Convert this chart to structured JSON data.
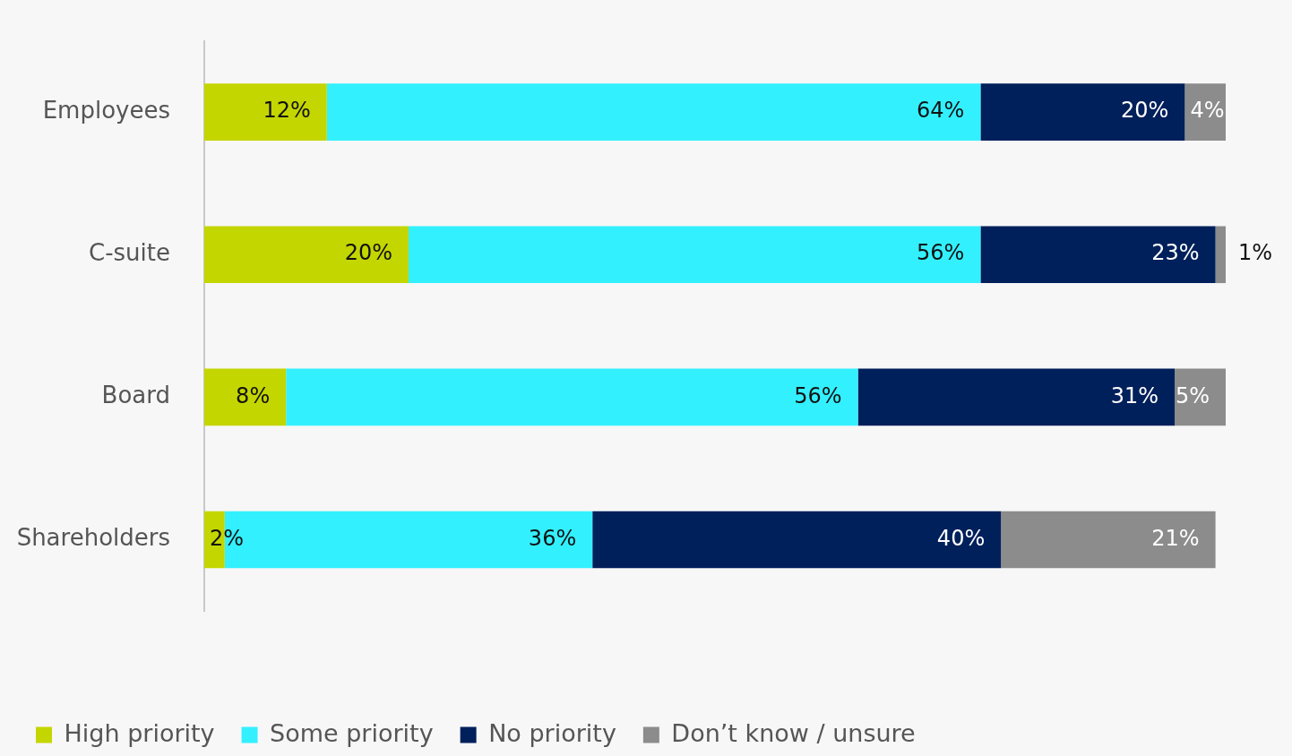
{
  "chart_data": {
    "type": "bar",
    "orientation": "horizontal",
    "stacked": true,
    "categories": [
      "Employees",
      "C-suite",
      "Board",
      "Shareholders"
    ],
    "series": [
      {
        "name": "High priority",
        "color": "#c4d600",
        "values": [
          12,
          20,
          8,
          2
        ],
        "value_labels": [
          "12%",
          "20%",
          "8%",
          "2%"
        ]
      },
      {
        "name": "Some priority",
        "color": "#33f0ff",
        "values": [
          64,
          56,
          56,
          36
        ],
        "value_labels": [
          "64%",
          "56%",
          "56%",
          "36%"
        ]
      },
      {
        "name": "No priority",
        "color": "#00205b",
        "values": [
          20,
          23,
          31,
          40
        ],
        "value_labels": [
          "20%",
          "23%",
          "31%",
          "40%"
        ]
      },
      {
        "name": "Don’t know / unsure",
        "color": "#8c8c8c",
        "values": [
          4,
          1,
          5,
          21
        ],
        "value_labels": [
          "4%",
          "1%",
          "5%",
          "21%"
        ]
      }
    ],
    "tick_labels": "y",
    "grid": false,
    "legend": "bottom left"
  }
}
